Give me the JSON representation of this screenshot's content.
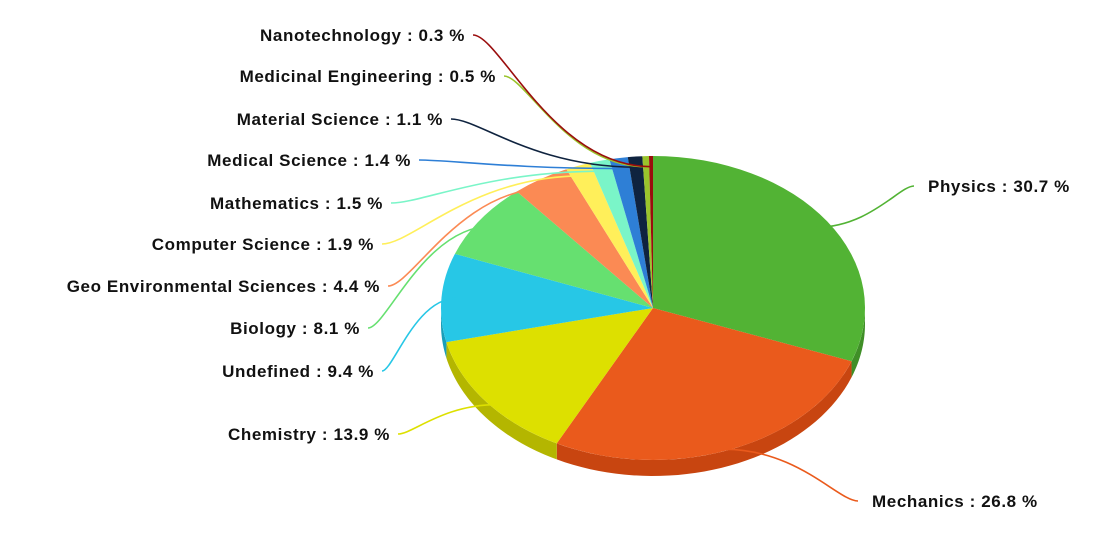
{
  "chart_data": {
    "type": "pie",
    "title": "",
    "slices": [
      {
        "name": "Physics",
        "value": 30.7,
        "label": "Physics : 30.7 %",
        "color": "#52b334",
        "side": "#3f8f27",
        "line": "#52b334"
      },
      {
        "name": "Mechanics",
        "value": 26.8,
        "label": "Mechanics : 26.8 %",
        "color": "#ea5a1c",
        "side": "#c84510",
        "line": "#ea5a1c"
      },
      {
        "name": "Chemistry",
        "value": 13.9,
        "label": "Chemistry : 13.9 %",
        "color": "#dde000",
        "side": "#b4b600",
        "line": "#dde000"
      },
      {
        "name": "Undefined",
        "value": 9.4,
        "label": "Undefined : 9.4 %",
        "color": "#27c7e6",
        "side": "#1a9fb9",
        "line": "#27c7e6"
      },
      {
        "name": "Biology",
        "value": 8.1,
        "label": "Biology : 8.1 %",
        "color": "#66e070",
        "side": "#4bb553",
        "line": "#66e070"
      },
      {
        "name": "Geo Environmental Sciences",
        "value": 4.4,
        "label": "Geo Environmental Sciences : 4.4 %",
        "color": "#fb8a54",
        "side": "#d96d38",
        "line": "#fb8a54"
      },
      {
        "name": "Computer Science",
        "value": 1.9,
        "label": "Computer Science : 1.9 %",
        "color": "#ffef5a",
        "side": "#d8c940",
        "line": "#ffef5a"
      },
      {
        "name": "Mathematics",
        "value": 1.5,
        "label": "Mathematics : 1.5 %",
        "color": "#7af5c8",
        "side": "#55cfa3",
        "line": "#7af5c8"
      },
      {
        "name": "Medical Science",
        "value": 1.4,
        "label": "Medical Science : 1.4 %",
        "color": "#2e7fd6",
        "side": "#1f63ad",
        "line": "#2e7fd6"
      },
      {
        "name": "Material Science",
        "value": 1.1,
        "label": "Material Science : 1.1 %",
        "color": "#0f233f",
        "side": "#081528",
        "line": "#0f233f"
      },
      {
        "name": "Medicinal Engineering",
        "value": 0.5,
        "label": "Medicinal Engineering : 0.5 %",
        "color": "#9ac42c",
        "side": "#7aa01e",
        "line": "#9ac42c"
      },
      {
        "name": "Nanotechnology",
        "value": 0.3,
        "label": "Nanotechnology : 0.3 %",
        "color": "#9a0d0d",
        "side": "#740808",
        "line": "#9a0d0d"
      }
    ]
  }
}
